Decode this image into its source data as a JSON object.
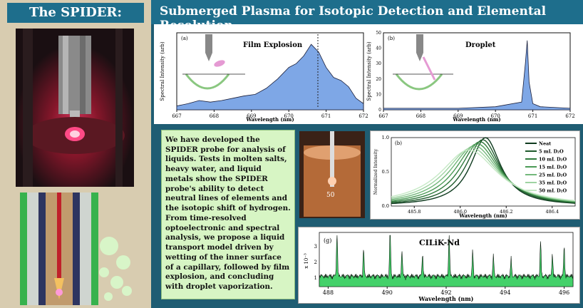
{
  "header": {
    "title": "The SPIDER:"
  },
  "banner": {
    "title": "Submerged Plasma for Isotopic Detection and Elemental Resolution"
  },
  "description": "We have developed the SPIDER probe for analysis of liquids. Tests in molten salts, heavy water, and liquid metals show the SPIDER probe's ability to detect neutral lines of elements and the isotopic shift of hydrogen. From time-resolved optoelectronic and spectral analysis, we propose a liquid transport model driven by wetting of the inner surface of a capillary, followed by film explosion, and concluding with droplet vaporization.",
  "colors": {
    "banner": "#1e6e8c",
    "left_panel": "#d8ccb0",
    "text_box": "#d7f5c4",
    "background": "#1f5d73"
  },
  "chart_data": [
    {
      "type": "area",
      "panel": "(a)",
      "annotation": "Film Explosion",
      "xlabel": "Wavelength (nm)",
      "ylabel": "Spectral Intensity (arb)",
      "xlim": [
        667,
        672
      ],
      "xticks": [
        "667",
        "668",
        "669",
        "670",
        "671",
        "672"
      ],
      "x": [
        667.0,
        667.3,
        667.6,
        667.9,
        668.2,
        668.5,
        668.8,
        669.1,
        669.4,
        669.7,
        670.0,
        670.2,
        670.4,
        670.6,
        670.8,
        671.0,
        671.2,
        671.4,
        671.6,
        671.8,
        672.0
      ],
      "y": [
        0.05,
        0.08,
        0.12,
        0.1,
        0.12,
        0.15,
        0.18,
        0.2,
        0.28,
        0.4,
        0.55,
        0.6,
        0.7,
        0.85,
        0.75,
        0.55,
        0.42,
        0.38,
        0.3,
        0.15,
        0.08
      ]
    },
    {
      "type": "area",
      "panel": "(b)",
      "annotation": "Droplet",
      "xlabel": "Wavelength (nm)",
      "ylabel": "Spectral Intensity (arb)",
      "xlim": [
        667,
        672
      ],
      "ylim": [
        0,
        50
      ],
      "xticks": [
        "667",
        "668",
        "669",
        "670",
        "671",
        "672"
      ],
      "yticks": [
        "0",
        "10",
        "20",
        "30",
        "40",
        "50"
      ],
      "x": [
        667.0,
        668.0,
        669.0,
        670.0,
        670.7,
        670.8,
        670.85,
        670.9,
        671.0,
        671.2,
        672.0
      ],
      "y": [
        1,
        1,
        1,
        2,
        5,
        30,
        45,
        18,
        4,
        2,
        1
      ]
    },
    {
      "type": "line",
      "panel": "(b)",
      "xlabel": "Wavelength (nm)",
      "ylabel": "Normalized Intensity",
      "xlim": [
        485.7,
        486.5
      ],
      "ylim": [
        0,
        1.0
      ],
      "xticks": [
        "485.8",
        "486.0",
        "486.2",
        "486.4"
      ],
      "yticks": [
        "0.0",
        "0.5",
        "1.0"
      ],
      "legend": [
        "Neat",
        "5 mL D₂O",
        "10 mL D₂O",
        "15 mL D₂O",
        "25 mL D₂O",
        "35 mL D₂O",
        "50 mL D₂O"
      ],
      "series_colors": [
        "#0f3b1f",
        "#1f5a2c",
        "#2f7a3c",
        "#4b9a55",
        "#73b87b",
        "#9fd3a2",
        "#c6e9c6"
      ]
    },
    {
      "type": "area",
      "panel": "(g)",
      "annotation": "CILiK-Nd",
      "xlabel": "Wavelength (nm)",
      "ylabel": "x 10⁻³",
      "xlim": [
        487.7,
        496.3
      ],
      "yticks": [
        "1",
        "2",
        "3"
      ],
      "xticks": [
        "488",
        "490",
        "492",
        "494",
        "496"
      ]
    }
  ]
}
